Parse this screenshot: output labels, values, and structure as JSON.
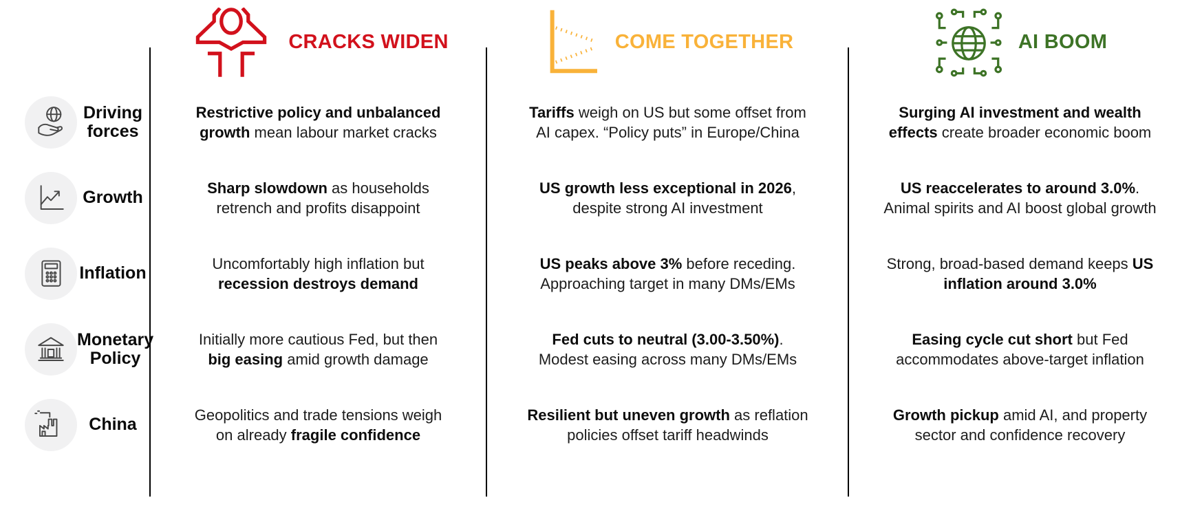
{
  "table": {
    "columns": [
      {
        "title": "CRACKS WIDEN",
        "color": "#D2111C",
        "icon": "stressed-person-icon"
      },
      {
        "title": "COME TOGETHER",
        "color": "#F9B239",
        "icon": "converging-lines-chart-icon"
      },
      {
        "title": "AI BOOM",
        "color": "#3D7326",
        "icon": "ai-circuit-globe-icon"
      }
    ],
    "rows": [
      {
        "label": "Driving forces",
        "icon": "globe-in-hand-icon",
        "cells": [
          [
            {
              "t": "Restrictive policy and unbalanced\ngrowth",
              "b": true
            },
            {
              "t": " mean labour market cracks",
              "b": false
            }
          ],
          [
            {
              "t": "Tariffs",
              "b": true
            },
            {
              "t": " weigh on US but some offset from\nAI capex. “Policy puts” in Europe/China",
              "b": false
            }
          ],
          [
            {
              "t": "Surging AI investment and wealth\neffects",
              "b": true
            },
            {
              "t": " create broader economic boom",
              "b": false
            }
          ]
        ]
      },
      {
        "label": "Growth",
        "icon": "line-chart-icon",
        "cells": [
          [
            {
              "t": "Sharp slowdown",
              "b": true
            },
            {
              "t": " as households\nretrench and profits disappoint",
              "b": false
            }
          ],
          [
            {
              "t": "US growth less exceptional in 2026",
              "b": true
            },
            {
              "t": ",\ndespite strong AI investment",
              "b": false
            }
          ],
          [
            {
              "t": "US reaccelerates to around 3.0%",
              "b": true
            },
            {
              "t": ".\nAnimal spirits and AI boost global growth",
              "b": false
            }
          ]
        ]
      },
      {
        "label": "Inflation",
        "icon": "calculator-icon",
        "cells": [
          [
            {
              "t": "Uncomfortably high inflation but\n",
              "b": false
            },
            {
              "t": "recession destroys demand",
              "b": true
            }
          ],
          [
            {
              "t": "US peaks above 3%",
              "b": true
            },
            {
              "t": " before receding.\nApproaching target in many DMs/EMs",
              "b": false
            }
          ],
          [
            {
              "t": "Strong, broad-based demand keeps ",
              "b": false
            },
            {
              "t": "US\ninflation around 3.0%",
              "b": true
            }
          ]
        ]
      },
      {
        "label": "Monetary Policy",
        "icon": "bank-icon",
        "cells": [
          [
            {
              "t": "Initially more cautious Fed, but then\n",
              "b": false
            },
            {
              "t": "big easing",
              "b": true
            },
            {
              "t": " amid growth damage",
              "b": false
            }
          ],
          [
            {
              "t": "Fed cuts to neutral (3.00-3.50%)",
              "b": true
            },
            {
              "t": ".\nModest easing across many DMs/EMs",
              "b": false
            }
          ],
          [
            {
              "t": "Easing cycle cut short",
              "b": true
            },
            {
              "t": " but Fed\naccommodates above-target inflation",
              "b": false
            }
          ]
        ]
      },
      {
        "label": "China",
        "icon": "factory-icon",
        "cells": [
          [
            {
              "t": "Geopolitics and trade tensions weigh\non already ",
              "b": false
            },
            {
              "t": "fragile confidence",
              "b": true
            }
          ],
          [
            {
              "t": "Resilient but uneven growth",
              "b": true
            },
            {
              "t": " as reflation\npolicies offset tariff headwinds",
              "b": false
            }
          ],
          [
            {
              "t": "Growth pickup",
              "b": true
            },
            {
              "t": " amid AI, and property\nsector and confidence recovery",
              "b": false
            }
          ]
        ]
      }
    ]
  }
}
